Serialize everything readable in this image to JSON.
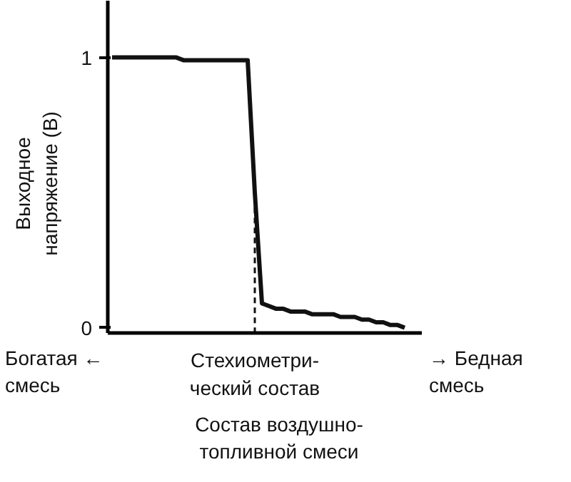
{
  "chart_data": {
    "type": "line",
    "ylabel": "Выходное\nнапряжение (В)",
    "xlabel": "Состав воздушно-\nтопливной смеси",
    "categories": [
      null,
      null,
      null,
      null,
      null,
      null,
      null,
      null,
      null,
      null,
      null,
      null,
      null,
      null,
      null,
      null,
      null,
      null,
      null,
      null,
      "Стехиометри-\nческий состав",
      null,
      null,
      null,
      null,
      null,
      null,
      null,
      null,
      null,
      null,
      null,
      null,
      null,
      null,
      null,
      null,
      null,
      null,
      null,
      null,
      null
    ],
    "series": [
      {
        "color": "#111111",
        "values": [
          1.0,
          1.0,
          1.0,
          1.0,
          1.0,
          1.0,
          1.0,
          1.0,
          1.0,
          1.0,
          0.99,
          0.99,
          0.99,
          0.99,
          0.99,
          0.99,
          0.99,
          0.99,
          0.99,
          0.99,
          0.5,
          0.09,
          0.08,
          0.07,
          0.07,
          0.06,
          0.06,
          0.06,
          0.05,
          0.05,
          0.05,
          0.05,
          0.04,
          0.04,
          0.04,
          0.03,
          0.03,
          0.02,
          0.02,
          0.01,
          0.01,
          0.0
        ]
      }
    ],
    "ylim": [
      -0.02,
      1.21
    ],
    "yticks": [
      0,
      1
    ],
    "grid": false,
    "line_style": "solid",
    "ref_lines": [
      {
        "axis": "x",
        "value": "Стехиометри-\nческий состав",
        "line_style": "dashed",
        "color": "#111111"
      }
    ],
    "annotations": [
      "Богатая ←\nсмесь",
      "→ Бедная\nсмесь"
    ]
  }
}
